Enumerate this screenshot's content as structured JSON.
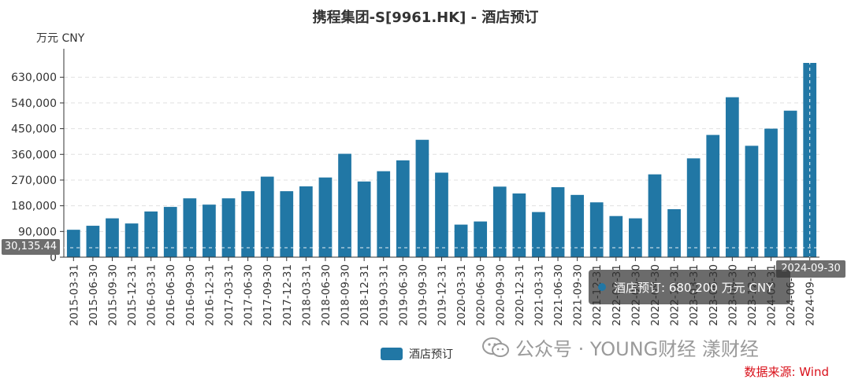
{
  "chart_data": {
    "type": "bar",
    "title": "携程集团-S[9961.HK] - 酒店预订",
    "unit_label": "万元  CNY",
    "ylim": [
      0,
      680200
    ],
    "yticks": [
      "0",
      "90,000",
      "180,000",
      "270,000",
      "360,000",
      "450,000",
      "540,000",
      "630,000"
    ],
    "ytick_values": [
      0,
      90000,
      180000,
      270000,
      360000,
      450000,
      540000,
      630000
    ],
    "grid": "horizontal dashed",
    "legend_position": "bottom-center",
    "categories": [
      "2015-03-31",
      "2015-06-30",
      "2015-09-30",
      "2015-12-31",
      "2016-03-31",
      "2016-06-30",
      "2016-09-30",
      "2016-12-31",
      "2017-03-31",
      "2017-06-30",
      "2017-09-30",
      "2017-12-31",
      "2018-03-31",
      "2018-06-30",
      "2018-09-30",
      "2018-12-31",
      "2019-03-31",
      "2019-06-30",
      "2019-09-30",
      "2019-12-31",
      "2020-03-31",
      "2020-06-30",
      "2020-09-30",
      "2020-12-31",
      "2021-03-31",
      "2021-06-30",
      "2021-09-30",
      "2021-12-31",
      "2022-03-31",
      "2022-06-30",
      "2022-09-30",
      "2022-12-31",
      "2023-03-31",
      "2023-06-30",
      "2023-09-30",
      "2023-12-31",
      "2024-03-31",
      "2024-06-30",
      "2024-09-30"
    ],
    "series": [
      {
        "name": "酒店预订",
        "color": "#2177a5",
        "values": [
          96000,
          110000,
          136000,
          118000,
          160000,
          176000,
          206000,
          184000,
          206000,
          231000,
          282000,
          231000,
          248000,
          279000,
          362000,
          265000,
          301000,
          339000,
          411000,
          296000,
          114000,
          125000,
          247000,
          223000,
          158000,
          245000,
          218000,
          192000,
          144000,
          136000,
          290000,
          168000,
          346000,
          428000,
          560000,
          390000,
          450000,
          513000,
          680200
        ]
      }
    ]
  },
  "tooltip": {
    "text": "酒店预订: 680,200  万元  CNY",
    "color": "#2177a5"
  },
  "crosshair": {
    "y_label": "30,135.44",
    "x_label": "2024-09-30"
  },
  "watermark": "公众号 · YOUNG财经 漾财经",
  "source": "数据来源: Wind"
}
